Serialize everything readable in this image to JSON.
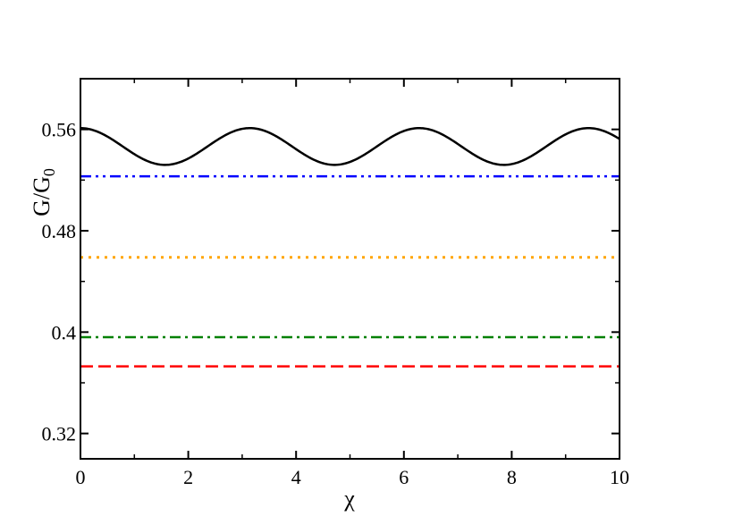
{
  "chart_data": {
    "type": "line",
    "title": "",
    "xlabel": "χ",
    "ylabel": "G/G",
    "ylabel_subscript": "0",
    "xlim": [
      0,
      10
    ],
    "ylim": [
      0.3,
      0.6
    ],
    "xticks": [
      0,
      2,
      4,
      6,
      8,
      10
    ],
    "xtick_labels": [
      "0",
      "2",
      "4",
      "6",
      "8",
      "10"
    ],
    "yticks": [
      0.32,
      0.4,
      0.48,
      0.56
    ],
    "ytick_labels": [
      "0.32",
      "0.4",
      "0.48",
      "0.56"
    ],
    "grid": false,
    "series": [
      {
        "kind": "oscillating",
        "color": "#000000",
        "style": "solid",
        "center": 0.5465,
        "amplitude": 0.0145,
        "period": 3.1416,
        "x_range": [
          0,
          10
        ]
      },
      {
        "kind": "constant",
        "color": "#0000ff",
        "style": "dash-dot-dot",
        "value": 0.523,
        "x_range": [
          0,
          10
        ]
      },
      {
        "kind": "constant",
        "color": "#ffa500",
        "style": "dotted",
        "value": 0.459,
        "x_range": [
          0,
          10
        ]
      },
      {
        "kind": "constant",
        "color": "#008000",
        "style": "dash-dot",
        "value": 0.396,
        "x_range": [
          0,
          10
        ]
      },
      {
        "kind": "constant",
        "color": "#ff0000",
        "style": "dashed",
        "value": 0.373,
        "x_range": [
          0,
          10
        ]
      }
    ]
  }
}
